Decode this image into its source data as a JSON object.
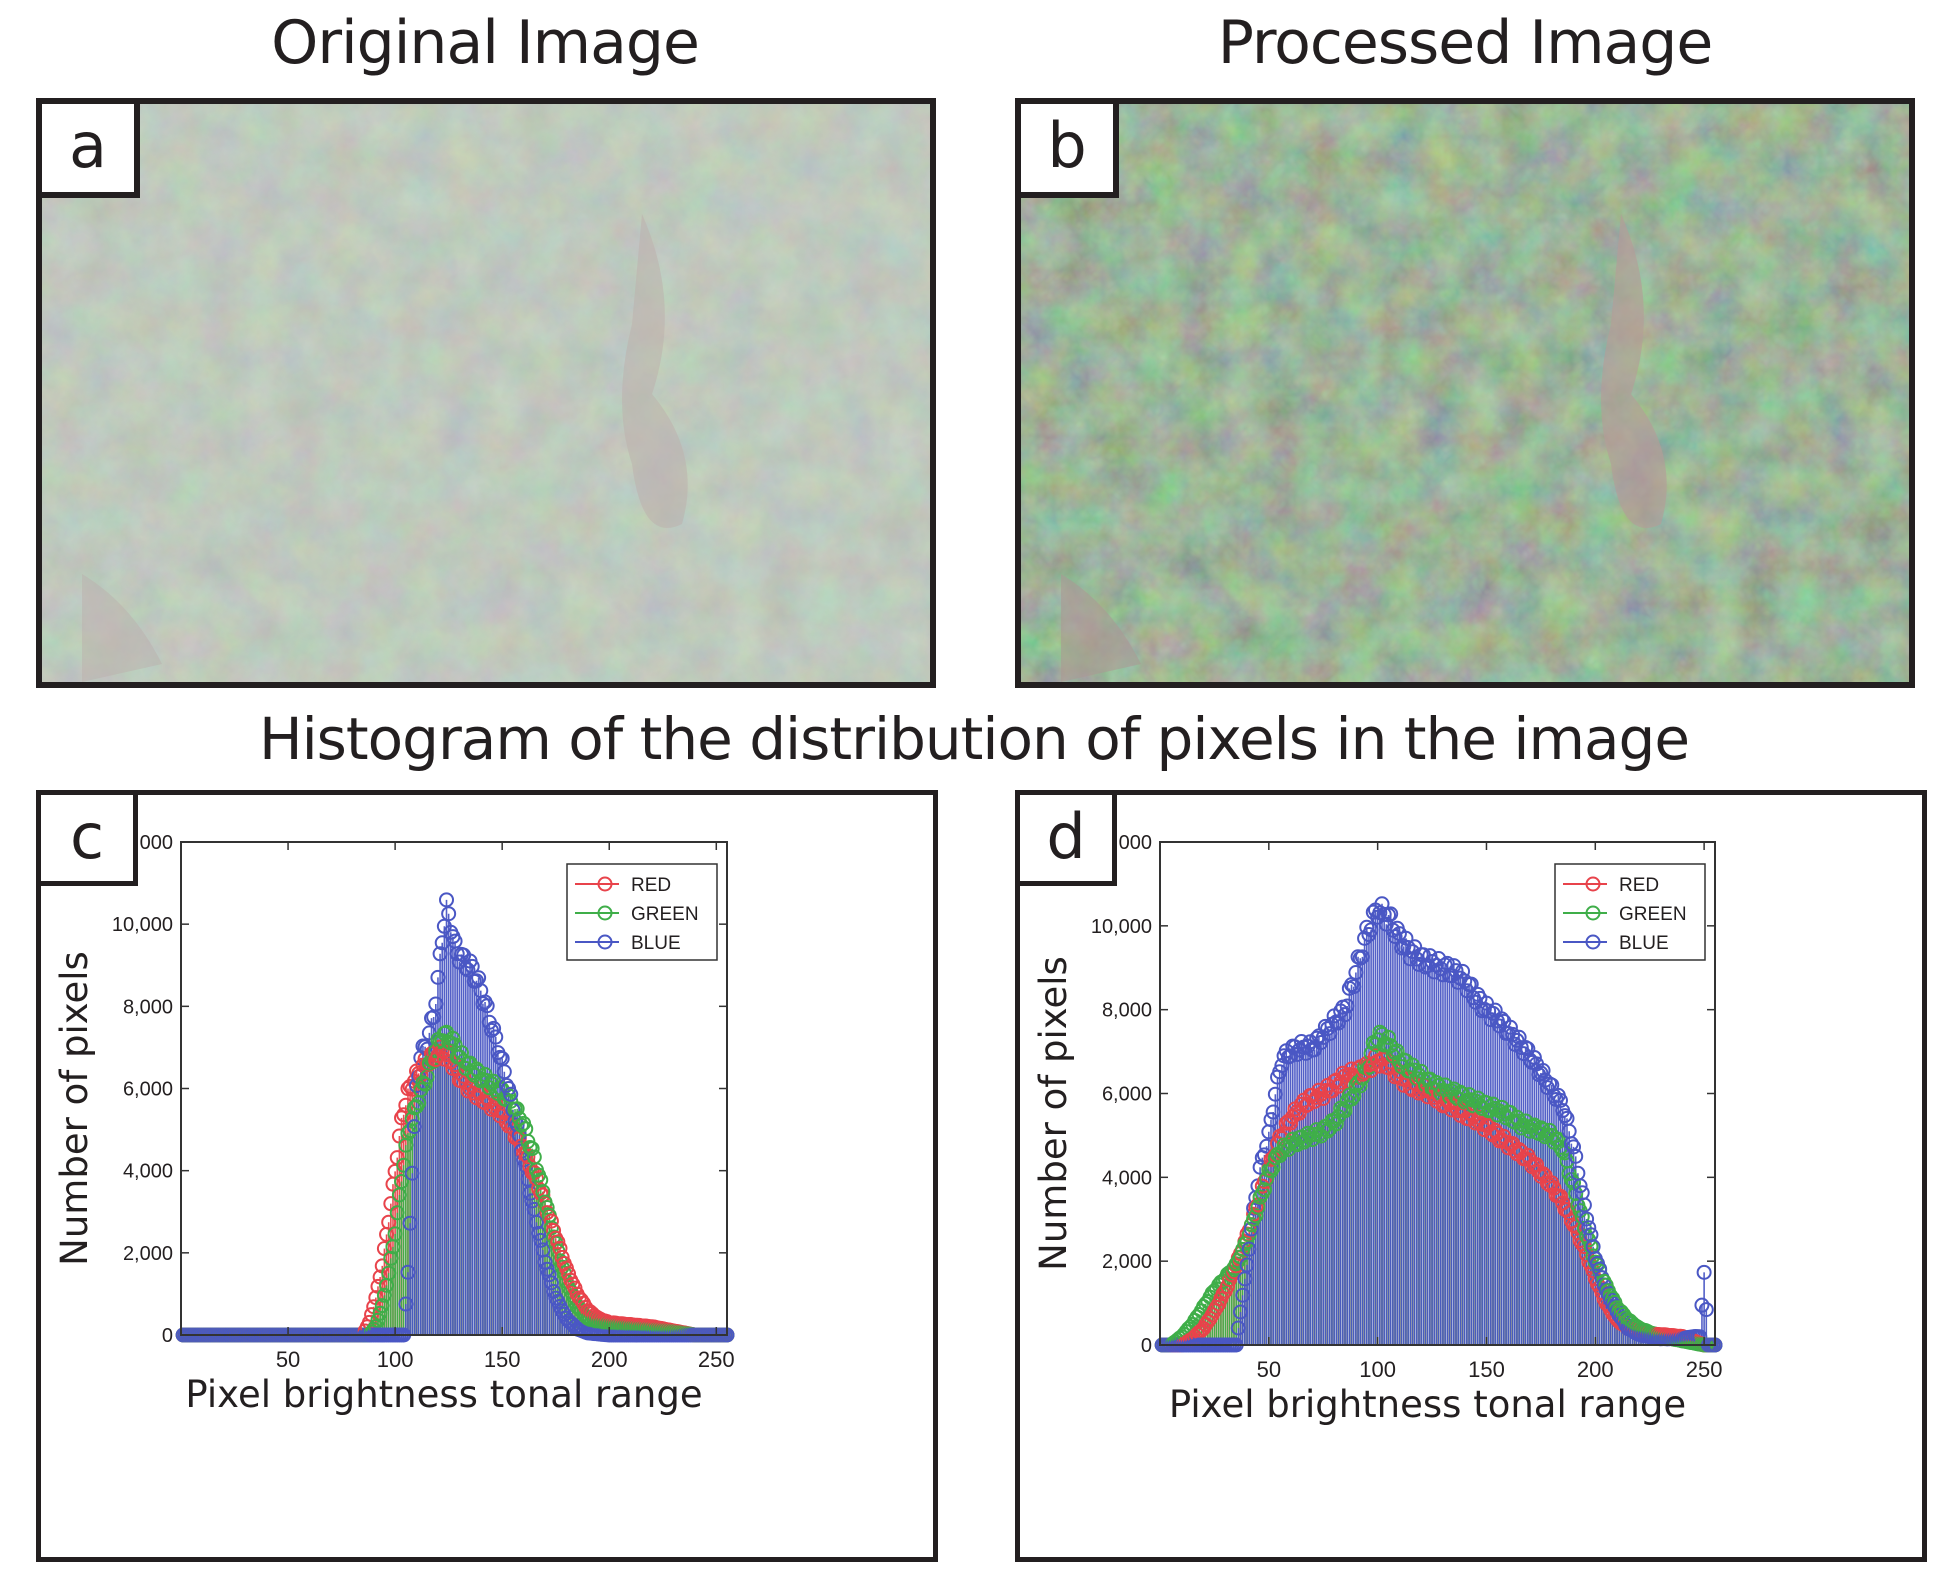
{
  "headings": {
    "original": "Original Image",
    "processed": "Processed Image",
    "histogram": "Histogram of the distribution of pixels in the image"
  },
  "panels": {
    "a": "a",
    "b": "b",
    "c": "c",
    "d": "d"
  },
  "colors": {
    "red": "#e8434b",
    "green": "#3fae49",
    "blue": "#4a57c4",
    "frame": "#231f20"
  },
  "chart_data": [
    {
      "type": "stem",
      "panel": "c",
      "xlabel": "Pixel brightness tonal range",
      "ylabel": "Number of pixels",
      "xlim": [
        0,
        255
      ],
      "ylim": [
        0,
        12000
      ],
      "xticks": [
        50,
        100,
        150,
        200,
        250
      ],
      "yticks": [
        0,
        2000,
        4000,
        6000,
        8000,
        10000,
        12000
      ],
      "ytick_labels": [
        "0",
        "2,000",
        "4,000",
        "6,000",
        "8,000",
        "10,000",
        "12,000"
      ],
      "legend_position": "top-right",
      "series": [
        {
          "name": "RED",
          "color": "#e8434b",
          "points": [
            [
              0,
              0
            ],
            [
              85,
              0
            ],
            [
              88,
              300
            ],
            [
              91,
              900
            ],
            [
              94,
              1700
            ],
            [
              97,
              2800
            ],
            [
              100,
              4000
            ],
            [
              103,
              5200
            ],
            [
              106,
              5900
            ],
            [
              110,
              6300
            ],
            [
              114,
              6600
            ],
            [
              118,
              6800
            ],
            [
              122,
              6900
            ],
            [
              126,
              6700
            ],
            [
              130,
              6300
            ],
            [
              135,
              6000
            ],
            [
              140,
              5800
            ],
            [
              145,
              5600
            ],
            [
              150,
              5400
            ],
            [
              155,
              5000
            ],
            [
              160,
              4500
            ],
            [
              165,
              3900
            ],
            [
              170,
              3200
            ],
            [
              175,
              2400
            ],
            [
              180,
              1600
            ],
            [
              185,
              1000
            ],
            [
              190,
              600
            ],
            [
              195,
              400
            ],
            [
              200,
              300
            ],
            [
              210,
              250
            ],
            [
              220,
              200
            ],
            [
              230,
              100
            ],
            [
              240,
              0
            ],
            [
              255,
              0
            ]
          ]
        },
        {
          "name": "GREEN",
          "color": "#3fae49",
          "points": [
            [
              0,
              0
            ],
            [
              88,
              0
            ],
            [
              91,
              200
            ],
            [
              94,
              700
            ],
            [
              97,
              1500
            ],
            [
              100,
              2500
            ],
            [
              103,
              3800
            ],
            [
              106,
              4900
            ],
            [
              110,
              5600
            ],
            [
              114,
              6200
            ],
            [
              118,
              6800
            ],
            [
              122,
              7300
            ],
            [
              126,
              7200
            ],
            [
              130,
              6800
            ],
            [
              135,
              6500
            ],
            [
              140,
              6300
            ],
            [
              145,
              6100
            ],
            [
              150,
              5900
            ],
            [
              155,
              5600
            ],
            [
              160,
              5100
            ],
            [
              165,
              4300
            ],
            [
              170,
              3300
            ],
            [
              175,
              2200
            ],
            [
              180,
              1300
            ],
            [
              185,
              700
            ],
            [
              190,
              400
            ],
            [
              195,
              300
            ],
            [
              200,
              250
            ],
            [
              210,
              200
            ],
            [
              220,
              150
            ],
            [
              230,
              80
            ],
            [
              240,
              0
            ],
            [
              255,
              0
            ]
          ]
        },
        {
          "name": "BLUE",
          "color": "#4a57c4",
          "points": [
            [
              0,
              0
            ],
            [
              104,
              0
            ],
            [
              106,
              1500
            ],
            [
              108,
              4000
            ],
            [
              110,
              6000
            ],
            [
              112,
              6800
            ],
            [
              115,
              7100
            ],
            [
              118,
              7800
            ],
            [
              120,
              8600
            ],
            [
              122,
              9700
            ],
            [
              124,
              10400
            ],
            [
              126,
              10000
            ],
            [
              128,
              9400
            ],
            [
              132,
              9100
            ],
            [
              136,
              8900
            ],
            [
              140,
              8400
            ],
            [
              144,
              7700
            ],
            [
              148,
              7000
            ],
            [
              152,
              6200
            ],
            [
              156,
              5300
            ],
            [
              160,
              4300
            ],
            [
              165,
              3000
            ],
            [
              170,
              1800
            ],
            [
              175,
              900
            ],
            [
              180,
              400
            ],
            [
              185,
              150
            ],
            [
              190,
              50
            ],
            [
              200,
              0
            ],
            [
              255,
              0
            ]
          ]
        }
      ]
    },
    {
      "type": "stem",
      "panel": "d",
      "xlabel": "Pixel brightness tonal range",
      "ylabel": "Number of pixels",
      "xlim": [
        0,
        255
      ],
      "ylim": [
        0,
        12000
      ],
      "xticks": [
        50,
        100,
        150,
        200,
        250
      ],
      "yticks": [
        0,
        2000,
        4000,
        6000,
        8000,
        10000,
        12000
      ],
      "ytick_labels": [
        "0",
        "2,000",
        "4,000",
        "6,000",
        "8,000",
        "10,000",
        "12,000"
      ],
      "legend_position": "top-right",
      "series": [
        {
          "name": "RED",
          "color": "#e8434b",
          "points": [
            [
              0,
              0
            ],
            [
              10,
              0
            ],
            [
              15,
              150
            ],
            [
              20,
              400
            ],
            [
              25,
              800
            ],
            [
              30,
              1300
            ],
            [
              35,
              1900
            ],
            [
              40,
              2600
            ],
            [
              45,
              3400
            ],
            [
              50,
              4200
            ],
            [
              55,
              4900
            ],
            [
              60,
              5400
            ],
            [
              65,
              5700
            ],
            [
              70,
              5900
            ],
            [
              75,
              6000
            ],
            [
              80,
              6200
            ],
            [
              85,
              6400
            ],
            [
              90,
              6500
            ],
            [
              95,
              6600
            ],
            [
              100,
              6800
            ],
            [
              105,
              6700
            ],
            [
              110,
              6400
            ],
            [
              115,
              6200
            ],
            [
              120,
              6100
            ],
            [
              125,
              6000
            ],
            [
              130,
              5800
            ],
            [
              135,
              5700
            ],
            [
              140,
              5500
            ],
            [
              145,
              5400
            ],
            [
              150,
              5200
            ],
            [
              155,
              5000
            ],
            [
              160,
              4800
            ],
            [
              165,
              4600
            ],
            [
              170,
              4400
            ],
            [
              175,
              4100
            ],
            [
              180,
              3800
            ],
            [
              185,
              3400
            ],
            [
              190,
              2900
            ],
            [
              195,
              2300
            ],
            [
              200,
              1600
            ],
            [
              205,
              1000
            ],
            [
              210,
              600
            ],
            [
              215,
              400
            ],
            [
              220,
              300
            ],
            [
              225,
              250
            ],
            [
              230,
              250
            ],
            [
              240,
              200
            ],
            [
              250,
              0
            ],
            [
              255,
              0
            ]
          ]
        },
        {
          "name": "GREEN",
          "color": "#3fae49",
          "points": [
            [
              0,
              0
            ],
            [
              5,
              0
            ],
            [
              10,
              200
            ],
            [
              15,
              500
            ],
            [
              20,
              900
            ],
            [
              25,
              1300
            ],
            [
              30,
              1600
            ],
            [
              35,
              1900
            ],
            [
              40,
              2500
            ],
            [
              45,
              3300
            ],
            [
              50,
              4100
            ],
            [
              55,
              4600
            ],
            [
              60,
              4800
            ],
            [
              65,
              4900
            ],
            [
              70,
              5000
            ],
            [
              75,
              5100
            ],
            [
              80,
              5300
            ],
            [
              85,
              5700
            ],
            [
              90,
              6100
            ],
            [
              95,
              6600
            ],
            [
              100,
              7400
            ],
            [
              105,
              7200
            ],
            [
              110,
              6800
            ],
            [
              115,
              6600
            ],
            [
              120,
              6400
            ],
            [
              125,
              6200
            ],
            [
              130,
              6100
            ],
            [
              135,
              6000
            ],
            [
              140,
              5900
            ],
            [
              145,
              5800
            ],
            [
              150,
              5700
            ],
            [
              155,
              5600
            ],
            [
              160,
              5500
            ],
            [
              165,
              5300
            ],
            [
              170,
              5200
            ],
            [
              175,
              5100
            ],
            [
              180,
              5000
            ],
            [
              185,
              4700
            ],
            [
              190,
              3800
            ],
            [
              195,
              2800
            ],
            [
              200,
              2000
            ],
            [
              205,
              1400
            ],
            [
              210,
              900
            ],
            [
              215,
              600
            ],
            [
              220,
              400
            ],
            [
              225,
              300
            ],
            [
              230,
              200
            ],
            [
              240,
              100
            ],
            [
              250,
              0
            ],
            [
              255,
              0
            ]
          ]
        },
        {
          "name": "BLUE",
          "color": "#4a57c4",
          "points": [
            [
              0,
              0
            ],
            [
              35,
              0
            ],
            [
              38,
              1200
            ],
            [
              40,
              1900
            ],
            [
              43,
              3200
            ],
            [
              46,
              4200
            ],
            [
              50,
              5000
            ],
            [
              53,
              6000
            ],
            [
              56,
              6800
            ],
            [
              60,
              7000
            ],
            [
              65,
              7100
            ],
            [
              70,
              7100
            ],
            [
              75,
              7400
            ],
            [
              80,
              7700
            ],
            [
              85,
              8000
            ],
            [
              90,
              8900
            ],
            [
              95,
              9800
            ],
            [
              100,
              10400
            ],
            [
              105,
              10200
            ],
            [
              110,
              9700
            ],
            [
              115,
              9400
            ],
            [
              120,
              9200
            ],
            [
              125,
              9100
            ],
            [
              130,
              9000
            ],
            [
              135,
              8900
            ],
            [
              140,
              8700
            ],
            [
              145,
              8300
            ],
            [
              150,
              8000
            ],
            [
              155,
              7800
            ],
            [
              160,
              7500
            ],
            [
              165,
              7200
            ],
            [
              170,
              6900
            ],
            [
              175,
              6500
            ],
            [
              180,
              6100
            ],
            [
              185,
              5700
            ],
            [
              190,
              4700
            ],
            [
              195,
              3300
            ],
            [
              200,
              2100
            ],
            [
              205,
              1300
            ],
            [
              210,
              800
            ],
            [
              215,
              400
            ],
            [
              220,
              250
            ],
            [
              225,
              200
            ],
            [
              230,
              150
            ],
            [
              240,
              150
            ],
            [
              245,
              200
            ],
            [
              248,
              200
            ],
            [
              250,
              1700
            ],
            [
              252,
              0
            ],
            [
              255,
              0
            ]
          ]
        }
      ]
    }
  ]
}
